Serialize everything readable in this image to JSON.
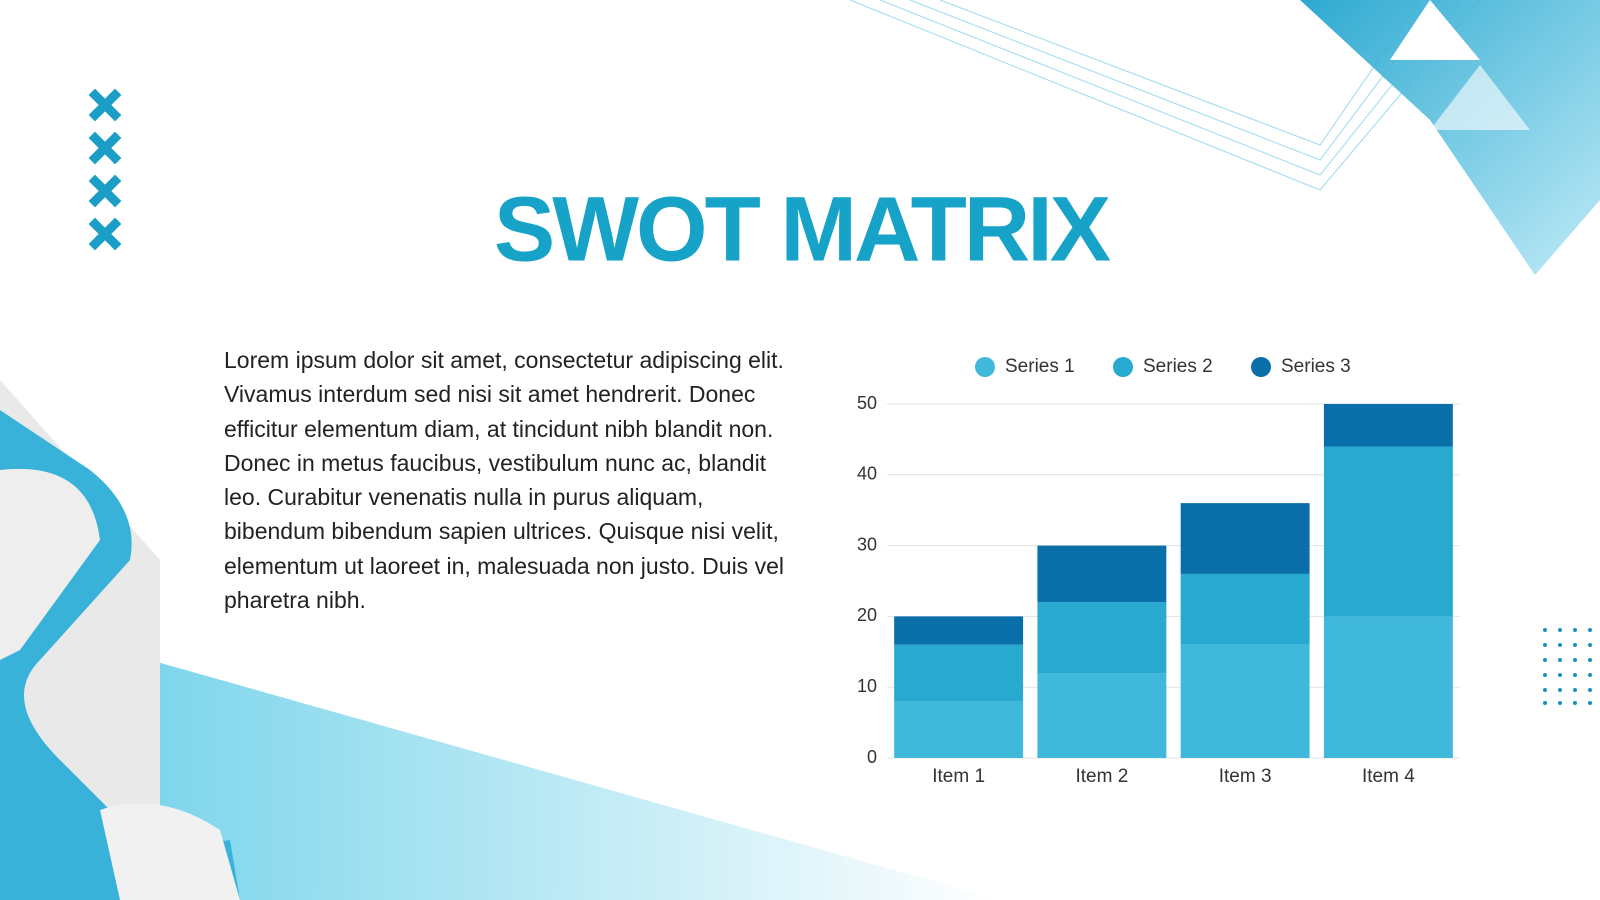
{
  "slide": {
    "title": "SWOT MATRIX",
    "body": "Lorem ipsum dolor sit amet, consectetur adipiscing elit. Vivamus interdum sed nisi sit amet hendrerit. Donec efficitur elementum diam, at tincidunt nibh blandit non. Donec in metus faucibus, vestibulum nunc ac, blandit leo. Curabitur venenatis nulla in purus aliquam, bibendum bibendum sapien ultrices. Quisque nisi velit, elementum ut laoreet in, malesuada non justo. Duis vel pharetra nibh."
  },
  "chart_data": {
    "type": "stacked_bar",
    "categories": [
      "Item 1",
      "Item 2",
      "Item 3",
      "Item 4"
    ],
    "series": [
      {
        "name": "Series 1",
        "color": "#3fb8dc",
        "values": [
          8,
          12,
          16,
          20
        ]
      },
      {
        "name": "Series 2",
        "color": "#28a9cf",
        "values": [
          8,
          10,
          10,
          24
        ]
      },
      {
        "name": "Series 3",
        "color": "#0a6fa8",
        "values": [
          4,
          8,
          10,
          6
        ]
      }
    ],
    "ylim": [
      0,
      50
    ],
    "yticks": [
      0,
      10,
      20,
      30,
      40,
      50
    ],
    "grid": true,
    "legend": "top"
  }
}
